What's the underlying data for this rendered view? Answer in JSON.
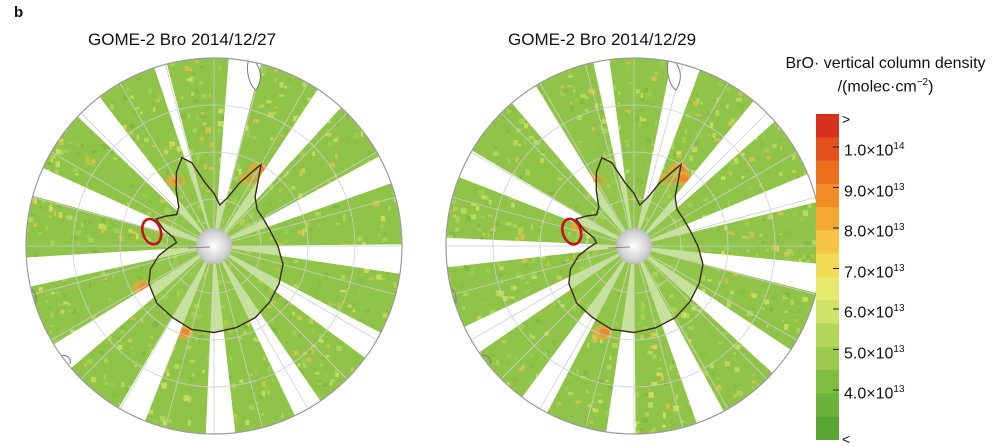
{
  "panel_label": "b",
  "maps": [
    {
      "title": "GOME-2 Bro 2014/12/27"
    },
    {
      "title": "GOME-2 Bro 2014/12/29"
    }
  ],
  "legend": {
    "title_line1": "BrO· vertical column density",
    "title_line2_prefix": "/(molec·cm",
    "title_line2_sup": "−2",
    "title_line2_suffix": ")",
    "top_marker": ">",
    "bottom_marker": "<",
    "ticks": [
      {
        "mantissa": "1.0×10",
        "exp": "14",
        "value": 100000000000000.0
      },
      {
        "mantissa": "9.0×10",
        "exp": "13",
        "value": 90000000000000.0
      },
      {
        "mantissa": "8.0×10",
        "exp": "13",
        "value": 80000000000000.0
      },
      {
        "mantissa": "7.0×10",
        "exp": "13",
        "value": 70000000000000.0
      },
      {
        "mantissa": "6.0×10",
        "exp": "13",
        "value": 60000000000000.0
      },
      {
        "mantissa": "5.0×10",
        "exp": "13",
        "value": 50000000000000.0
      },
      {
        "mantissa": "4.0×10",
        "exp": "13",
        "value": 40000000000000.0
      }
    ],
    "colors": [
      "#d7301f",
      "#e3501c",
      "#ec6f1e",
      "#f18c26",
      "#f5a832",
      "#f7c447",
      "#f2dc57",
      "#e6e96a",
      "#cfe36a",
      "#b3d65b",
      "#98c94c",
      "#7fbd41",
      "#6cb23a",
      "#5aa634"
    ]
  },
  "colors": {
    "swath_green": "#8fc449",
    "coast_line": "#3a2a1a",
    "region_highlight": "#c0161b",
    "grid": "#cfcfcf"
  }
}
